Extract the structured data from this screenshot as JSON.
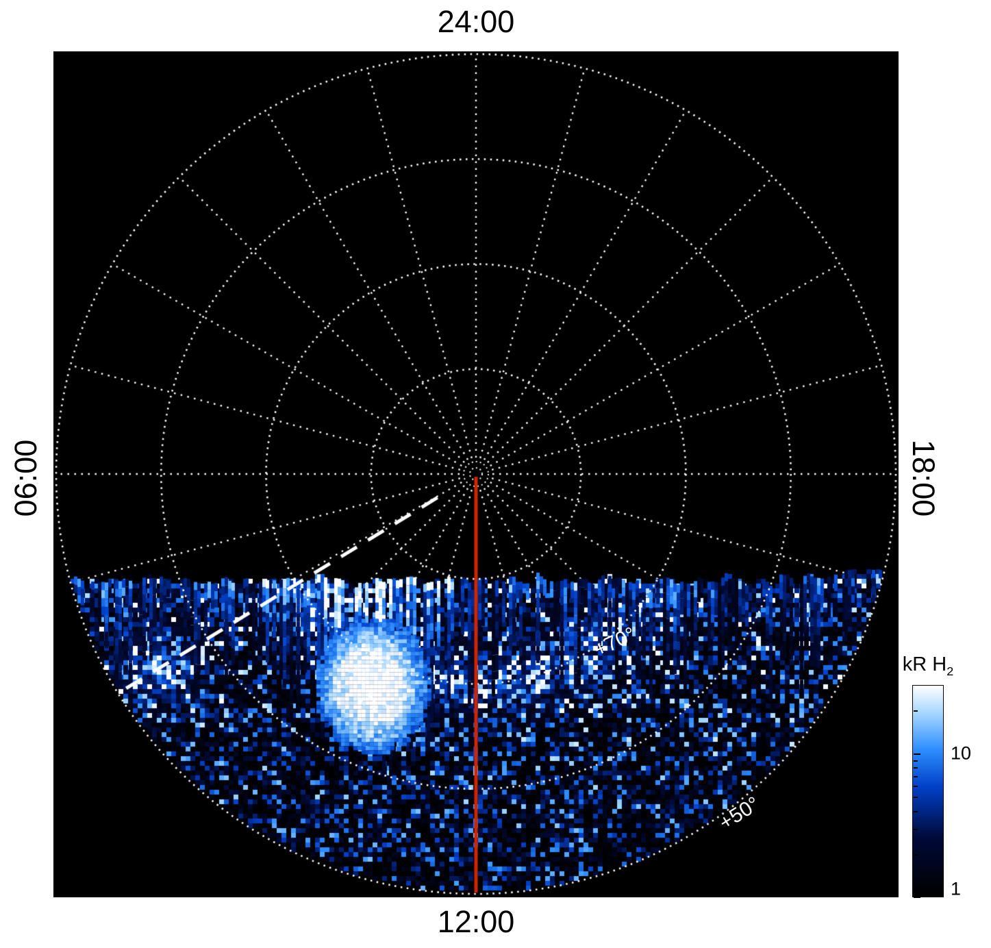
{
  "figure": {
    "background": "#ffffff",
    "plot_background": "#000000"
  },
  "labels": {
    "top": "24:00",
    "bottom": "12:00",
    "left": "06:00",
    "right": "18:00",
    "lat70": "+70°",
    "lat50": "+50°"
  },
  "colorbar": {
    "title": "kR H",
    "title_sub": "2",
    "ticks": [
      "10",
      "1"
    ],
    "tick_values": [
      10,
      1
    ],
    "range": [
      1,
      30
    ],
    "scale": "log"
  },
  "chart_data": {
    "type": "heatmap",
    "projection": "polar local-time vs latitude, pole at center",
    "quantity": "H2 auroral emission brightness",
    "units": "kR",
    "angular_axis": {
      "label_top": "24:00",
      "label_right": "18:00",
      "label_bottom": "12:00",
      "label_left": "06:00",
      "spoke_interval_hours": 1
    },
    "radial_axis": {
      "pole_latitude_deg": 90,
      "outer_latitude_deg": 50,
      "ring_interval_deg": 10,
      "labeled_rings_deg": [
        70,
        50
      ]
    },
    "color_scale": {
      "type": "log",
      "min_kr": 1,
      "max_kr": 30,
      "tick_values": [
        10,
        1
      ],
      "bar_label": "kR H2"
    },
    "coverage_note": "Emission data fill only the dayside (lower) part of the disk below a roughly horizontal swath boundary ~0.25 R below the pole; the nightside upper region is black (no data).",
    "features": [
      {
        "name": "bright-aurora-patch",
        "local_time": "10:15",
        "latitude_deg": 68,
        "peak": "saturated white, >30 kR"
      },
      {
        "name": "enhanced-emission-arc",
        "latitude_deg": 70,
        "local_time_range": "07:00-17:00",
        "brightness_kr": "5-15"
      },
      {
        "name": "dawn-side-patch",
        "local_time": "08:00",
        "latitude_deg": 56,
        "brightness_kr": "~10"
      },
      {
        "name": "background-speckle",
        "brightness_kr": "1-5"
      }
    ],
    "overlays": [
      {
        "name": "noon-meridian-line",
        "local_time_hours": 12,
        "color": "#cf2600",
        "style": "solid"
      },
      {
        "name": "dashed-pointer-line",
        "local_time_hours": 8.1,
        "color": "#ffffff",
        "style": "dashed"
      }
    ],
    "render": {
      "seed": 20251113,
      "colormap": [
        "#000000",
        "#000a38",
        "#0040c8",
        "#2f8fff",
        "#9fd4ff",
        "#ffffff"
      ],
      "colormap_pos": [
        0,
        0.28,
        0.55,
        0.72,
        0.86,
        1
      ],
      "swath_top_offset_frac": 0.254,
      "blob": {
        "x_frac": -0.25,
        "y_frac": 0.5,
        "rx_frac": 0.14,
        "ry_frac": 0.165
      },
      "left_patch": {
        "x_frac": -0.76,
        "y_frac": 0.46,
        "r_frac": 0.085
      },
      "arc_ring_frac": 0.5,
      "arc_width_frac": 0.075
    }
  }
}
